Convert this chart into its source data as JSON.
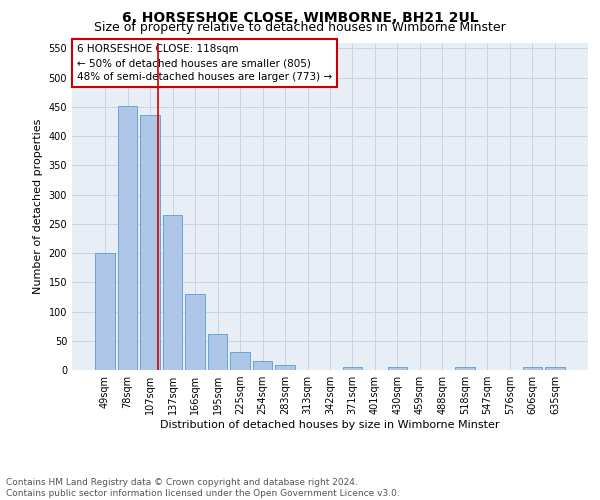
{
  "title": "6, HORSESHOE CLOSE, WIMBORNE, BH21 2UL",
  "subtitle": "Size of property relative to detached houses in Wimborne Minster",
  "xlabel": "Distribution of detached houses by size in Wimborne Minster",
  "ylabel": "Number of detached properties",
  "bin_labels": [
    "49sqm",
    "78sqm",
    "107sqm",
    "137sqm",
    "166sqm",
    "195sqm",
    "225sqm",
    "254sqm",
    "283sqm",
    "313sqm",
    "342sqm",
    "371sqm",
    "401sqm",
    "430sqm",
    "459sqm",
    "488sqm",
    "518sqm",
    "547sqm",
    "576sqm",
    "606sqm",
    "635sqm"
  ],
  "bar_values": [
    200,
    451,
    436,
    265,
    130,
    62,
    30,
    15,
    9,
    0,
    0,
    5,
    0,
    5,
    0,
    0,
    5,
    0,
    0,
    5,
    5
  ],
  "bar_color": "#aec6e8",
  "bar_edgecolor": "#5b9bd5",
  "vline_x": 2.37,
  "vline_color": "#cc0000",
  "annotation_box_text": "6 HORSESHOE CLOSE: 118sqm\n← 50% of detached houses are smaller (805)\n48% of semi-detached houses are larger (773) →",
  "annotation_box_color": "#cc0000",
  "ylim": [
    0,
    560
  ],
  "yticks": [
    0,
    50,
    100,
    150,
    200,
    250,
    300,
    350,
    400,
    450,
    500,
    550
  ],
  "footnote": "Contains HM Land Registry data © Crown copyright and database right 2024.\nContains public sector information licensed under the Open Government Licence v3.0.",
  "bg_color": "#ffffff",
  "plot_bg_color": "#e8eef5",
  "grid_color": "#c8d4e4",
  "title_fontsize": 10,
  "subtitle_fontsize": 9,
  "axis_label_fontsize": 8,
  "tick_fontsize": 7,
  "annotation_fontsize": 7.5,
  "footnote_fontsize": 6.5
}
